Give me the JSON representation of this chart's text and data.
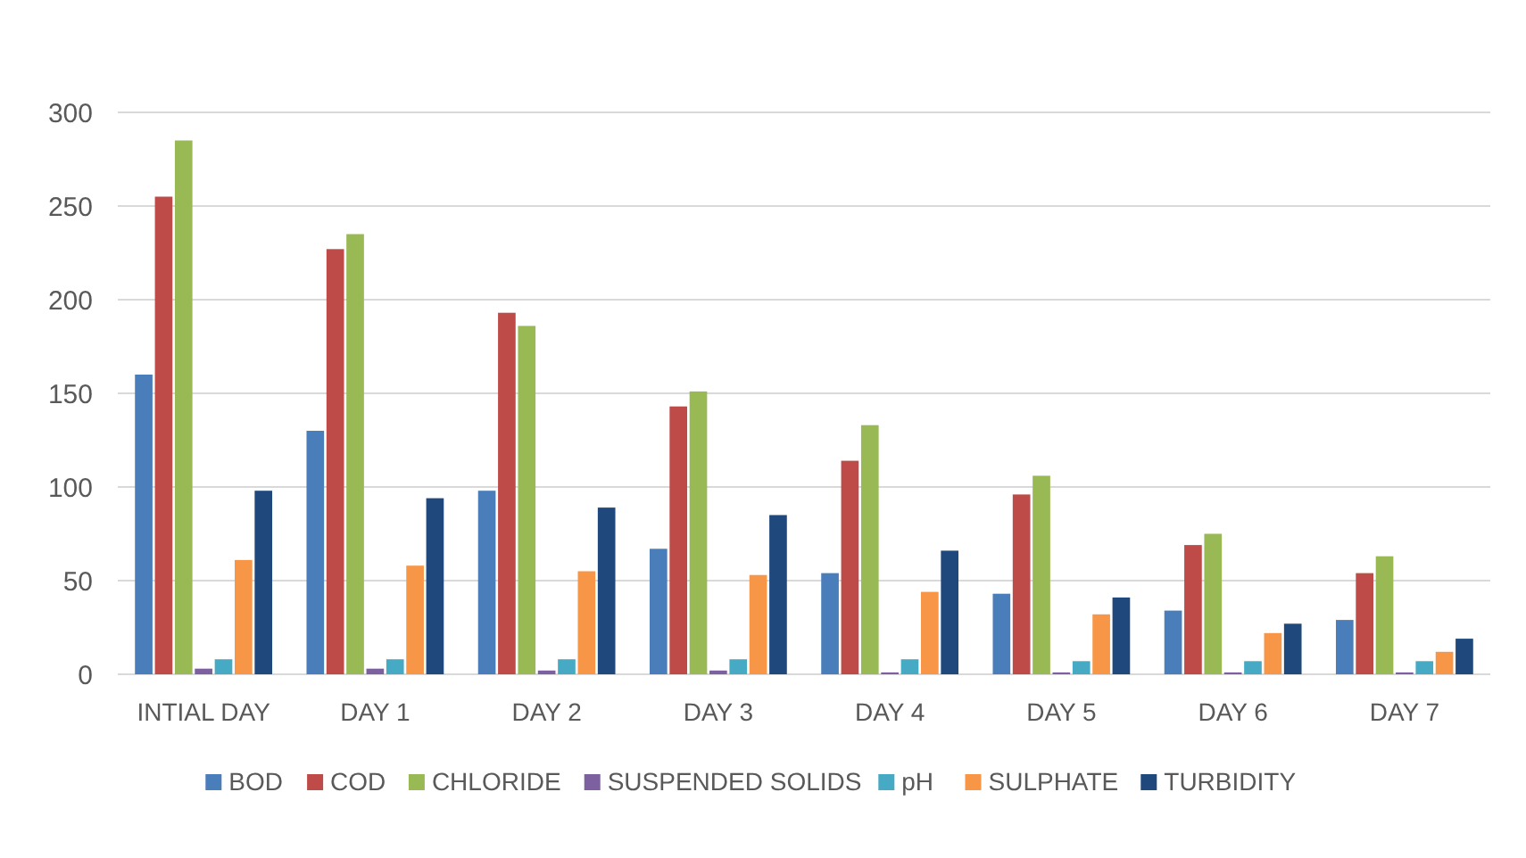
{
  "chart_data": {
    "type": "bar",
    "categories": [
      "INTIAL DAY",
      "DAY 1",
      "DAY 2",
      "DAY 3",
      "DAY 4",
      "DAY 5",
      "DAY 6",
      "DAY 7"
    ],
    "series": [
      {
        "name": "BOD",
        "color": "#4a7ebb",
        "values": [
          160,
          130,
          98,
          67,
          54,
          43,
          34,
          29
        ]
      },
      {
        "name": "COD",
        "color": "#be4b48",
        "values": [
          255,
          227,
          193,
          143,
          114,
          96,
          69,
          54
        ]
      },
      {
        "name": "CHLORIDE",
        "color": "#98b954",
        "values": [
          285,
          235,
          186,
          151,
          133,
          106,
          75,
          63
        ]
      },
      {
        "name": "SUSPENDED SOLIDS",
        "color": "#7d60a0",
        "values": [
          3,
          3,
          2,
          2,
          1,
          1,
          1,
          1
        ]
      },
      {
        "name": "pH",
        "color": "#46aac5",
        "values": [
          8,
          8,
          8,
          8,
          8,
          7,
          7,
          7
        ]
      },
      {
        "name": "SULPHATE",
        "color": "#f79646",
        "values": [
          61,
          58,
          55,
          53,
          44,
          32,
          22,
          12
        ]
      },
      {
        "name": "TURBIDITY",
        "color": "#1f497d",
        "values": [
          98,
          94,
          89,
          85,
          66,
          41,
          27,
          19
        ]
      }
    ],
    "ylim": [
      0,
      300
    ],
    "yticks": [
      0,
      50,
      100,
      150,
      200,
      250,
      300
    ],
    "grid": "y",
    "legend": "bottom"
  }
}
